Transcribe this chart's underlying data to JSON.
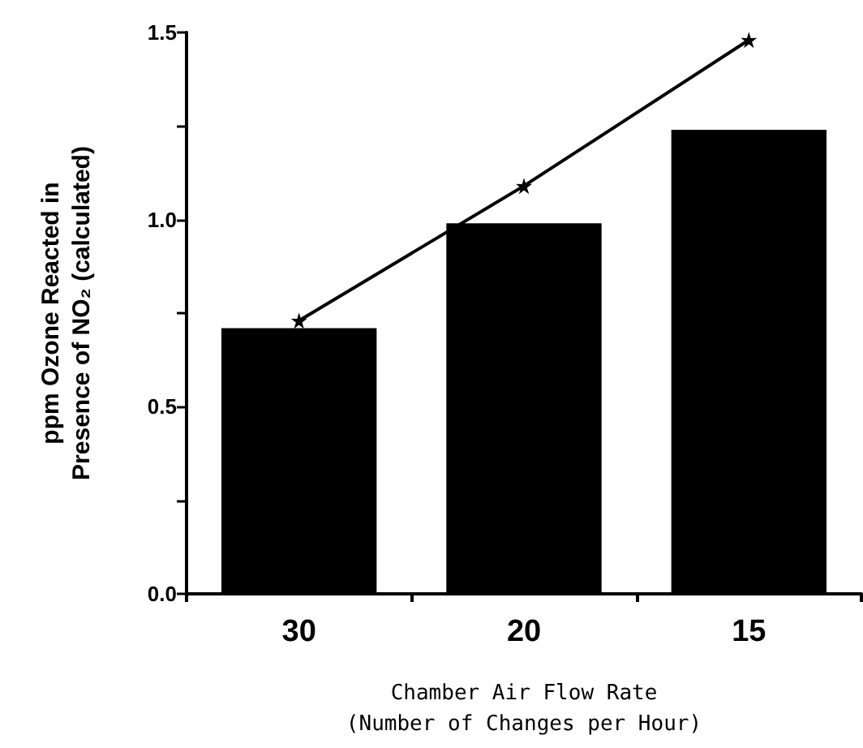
{
  "chart_data": {
    "type": "bar",
    "xlabel": "Chamber Air Flow Rate\n(Number of Changes per Hour)",
    "ylabel": "ppm Ozone Reacted in\nPresence of NO₂ (calculated)",
    "categories": [
      "30",
      "20",
      "15"
    ],
    "series": [
      {
        "color": "#000000",
        "values": [
          0.71,
          0.99,
          1.24
        ]
      },
      {
        "type": "line",
        "color": "#000000",
        "values": [
          0.73,
          1.09,
          1.48
        ],
        "marker": "star",
        "line_style": "solid"
      }
    ],
    "ylim": [
      0,
      1.5
    ],
    "yticks": [
      {
        "value": 0,
        "label": "0.0"
      },
      {
        "value": 0.25,
        "label": null
      },
      {
        "value": 0.5,
        "label": "0.5"
      },
      {
        "value": 0.75,
        "label": null
      },
      {
        "value": 1,
        "label": "1.0"
      },
      {
        "value": 1.25,
        "label": null
      },
      {
        "value": 1.5,
        "label": "1.5"
      }
    ],
    "grid": false
  }
}
